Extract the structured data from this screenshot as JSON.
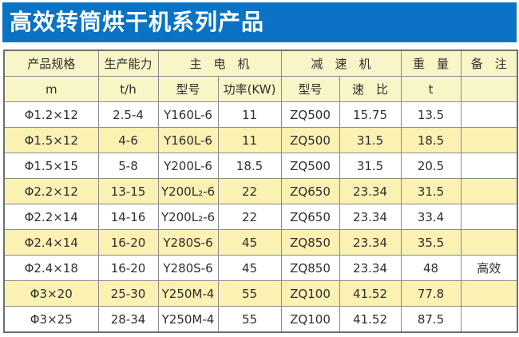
{
  "title": "高效转筒烘干机系列产品",
  "colors": {
    "title_bg": "#0a73c4",
    "title_text": "#ffffff",
    "header_bg": "#f8f5c7",
    "row_alt_bg": "#faf1b2",
    "row_bg": "#ffffff",
    "border": "#8b8b8b",
    "text": "#2f2f2f"
  },
  "header": {
    "row1": {
      "spec": "产品规格",
      "capacity": "生产能力",
      "motor": "主　电　机",
      "reducer": "减　速　机",
      "weight": "重　量",
      "remark": "备　注"
    },
    "row2": {
      "spec_unit": "m",
      "capacity_unit": "t/h",
      "motor_model": "型号",
      "motor_power": "功率(KW)",
      "reducer_model": "型号",
      "reducer_ratio": "速　比",
      "weight_unit": "t",
      "remark_unit": ""
    }
  },
  "rows": [
    {
      "spec": "Φ1.2×12",
      "capacity": "2.5-4",
      "motor_model": "Y160L-6",
      "power": "11",
      "reducer_model": "ZQ500",
      "ratio": "15.75",
      "weight": "13.5",
      "remark": ""
    },
    {
      "spec": "Φ1.5×12",
      "capacity": "4-6",
      "motor_model": "Y160L-6",
      "power": "11",
      "reducer_model": "ZQ500",
      "ratio": "31.5",
      "weight": "18.5",
      "remark": ""
    },
    {
      "spec": "Φ1.5×15",
      "capacity": "5-8",
      "motor_model": "Y200L-6",
      "power": "18.5",
      "reducer_model": "ZQ500",
      "ratio": "31.5",
      "weight": "20.5",
      "remark": ""
    },
    {
      "spec": "Φ2.2×12",
      "capacity": "13-15",
      "motor_model": "Y200L₂-6",
      "power": "22",
      "reducer_model": "ZQ650",
      "ratio": "23.34",
      "weight": "31.5",
      "remark": ""
    },
    {
      "spec": "Φ2.2×14",
      "capacity": "14-16",
      "motor_model": "Y200L₂-6",
      "power": "22",
      "reducer_model": "ZQ650",
      "ratio": "23.34",
      "weight": "33.4",
      "remark": ""
    },
    {
      "spec": "Φ2.4×14",
      "capacity": "16-20",
      "motor_model": "Y280S-6",
      "power": "45",
      "reducer_model": "ZQ850",
      "ratio": "23.34",
      "weight": "35.5",
      "remark": ""
    },
    {
      "spec": "Φ2.4×18",
      "capacity": "16-20",
      "motor_model": "Y280S-6",
      "power": "45",
      "reducer_model": "ZQ850",
      "ratio": "23.34",
      "weight": "48",
      "remark": "高效"
    },
    {
      "spec": "Φ3×20",
      "capacity": "25-30",
      "motor_model": "Y250M-4",
      "power": "55",
      "reducer_model": "ZQ100",
      "ratio": "41.52",
      "weight": "77.8",
      "remark": ""
    },
    {
      "spec": "Φ3×25",
      "capacity": "28-34",
      "motor_model": "Y250M-4",
      "power": "55",
      "reducer_model": "ZQ100",
      "ratio": "41.52",
      "weight": "87.5",
      "remark": ""
    }
  ]
}
